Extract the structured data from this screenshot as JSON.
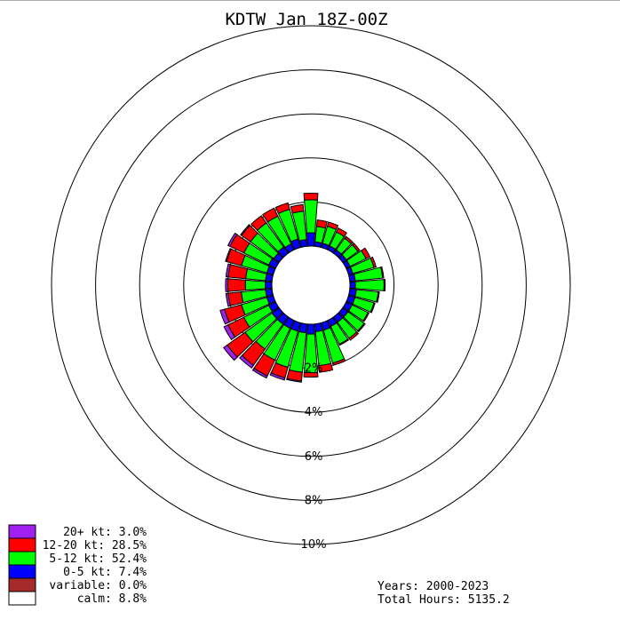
{
  "chart_data": {
    "type": "windrose",
    "title": "KDTW Jan 18Z-00Z",
    "radial_unit": "%",
    "ring_labels": [
      "2%",
      "4%",
      "6%",
      "8%",
      "10%"
    ],
    "ring_values": [
      2,
      4,
      6,
      8,
      10
    ],
    "calm_radius_pct": 0.8,
    "bin_width_deg": 10,
    "speed_bins": [
      {
        "key": "lt5",
        "label": "0-5 kt",
        "color": "#0000ff"
      },
      {
        "key": "b512",
        "label": "5-12 kt",
        "color": "#00ff00"
      },
      {
        "key": "b1220",
        "label": "12-20 kt",
        "color": "#ff0000"
      },
      {
        "key": "gt20",
        "label": "20+ kt",
        "color": "#a020f0"
      }
    ],
    "directions": [
      {
        "deg": 0,
        "cum": [
          0.6,
          2.1,
          2.4,
          2.4
        ]
      },
      {
        "deg": 10,
        "cum": [
          0.2,
          0.9,
          1.2,
          1.2
        ]
      },
      {
        "deg": 20,
        "cum": [
          0.2,
          1.0,
          1.2,
          1.2
        ]
      },
      {
        "deg": 30,
        "cum": [
          0.2,
          0.9,
          1.1,
          1.1
        ]
      },
      {
        "deg": 40,
        "cum": [
          0.2,
          0.85,
          0.95,
          0.95
        ]
      },
      {
        "deg": 50,
        "cum": [
          0.2,
          0.85,
          0.95,
          0.95
        ]
      },
      {
        "deg": 60,
        "cum": [
          0.2,
          1.0,
          1.2,
          1.2
        ]
      },
      {
        "deg": 70,
        "cum": [
          0.2,
          1.2,
          1.3,
          1.3
        ]
      },
      {
        "deg": 80,
        "cum": [
          0.25,
          1.5,
          1.55,
          1.55
        ]
      },
      {
        "deg": 90,
        "cum": [
          0.25,
          1.55,
          1.6,
          1.6
        ]
      },
      {
        "deg": 100,
        "cum": [
          0.3,
          1.3,
          1.35,
          1.35
        ]
      },
      {
        "deg": 110,
        "cum": [
          0.3,
          1.2,
          1.25,
          1.25
        ]
      },
      {
        "deg": 120,
        "cum": [
          0.3,
          1.1,
          1.15,
          1.15
        ]
      },
      {
        "deg": 130,
        "cum": [
          0.3,
          1.2,
          1.25,
          1.25
        ]
      },
      {
        "deg": 140,
        "cum": [
          0.3,
          1.2,
          1.3,
          1.3
        ]
      },
      {
        "deg": 150,
        "cum": [
          0.3,
          1.2,
          1.25,
          1.25
        ]
      },
      {
        "deg": 160,
        "cum": [
          0.35,
          1.9,
          2.0,
          2.0
        ]
      },
      {
        "deg": 170,
        "cum": [
          0.35,
          1.9,
          2.2,
          2.2
        ]
      },
      {
        "deg": 180,
        "cum": [
          0.45,
          2.2,
          2.4,
          2.4
        ]
      },
      {
        "deg": 190,
        "cum": [
          0.4,
          2.2,
          2.6,
          2.65
        ]
      },
      {
        "deg": 200,
        "cum": [
          0.4,
          2.1,
          2.6,
          2.7
        ]
      },
      {
        "deg": 210,
        "cum": [
          0.4,
          2.0,
          2.8,
          2.9
        ]
      },
      {
        "deg": 220,
        "cum": [
          0.4,
          1.8,
          2.7,
          2.85
        ]
      },
      {
        "deg": 230,
        "cum": [
          0.4,
          1.9,
          2.9,
          3.1
        ]
      },
      {
        "deg": 240,
        "cum": [
          0.35,
          1.6,
          2.4,
          2.6
        ]
      },
      {
        "deg": 250,
        "cum": [
          0.3,
          1.5,
          2.3,
          2.5
        ]
      },
      {
        "deg": 260,
        "cum": [
          0.3,
          1.4,
          2.0,
          2.1
        ]
      },
      {
        "deg": 270,
        "cum": [
          0.3,
          1.2,
          2.0,
          2.1
        ]
      },
      {
        "deg": 280,
        "cum": [
          0.3,
          1.2,
          2.0,
          2.1
        ]
      },
      {
        "deg": 290,
        "cum": [
          0.3,
          1.5,
          2.2,
          2.25
        ]
      },
      {
        "deg": 300,
        "cum": [
          0.35,
          1.6,
          2.3,
          2.4
        ]
      },
      {
        "deg": 310,
        "cum": [
          0.3,
          1.6,
          2.1,
          2.15
        ]
      },
      {
        "deg": 320,
        "cum": [
          0.35,
          1.7,
          2.1,
          2.1
        ]
      },
      {
        "deg": 330,
        "cum": [
          0.3,
          1.7,
          2.1,
          2.1
        ]
      },
      {
        "deg": 340,
        "cum": [
          0.4,
          1.8,
          2.1,
          2.1
        ]
      },
      {
        "deg": 350,
        "cum": [
          0.3,
          1.6,
          1.9,
          1.9
        ]
      }
    ]
  },
  "legend": [
    {
      "label": "20+ kt:  3.0%",
      "color": "#a020f0"
    },
    {
      "label": "12-20 kt: 28.5%",
      "color": "#ff0000"
    },
    {
      "label": "5-12 kt: 52.4%",
      "color": "#00ff00"
    },
    {
      "label": "0-5 kt:  7.4%",
      "color": "#0000ff"
    },
    {
      "label": "variable:  0.0%",
      "color": "#a52a2a"
    },
    {
      "label": "calm:  8.8%",
      "color": "#ffffff"
    }
  ],
  "stats": {
    "years": "Years: 2000-2023",
    "total_hours": "Total Hours: 5135.2"
  }
}
